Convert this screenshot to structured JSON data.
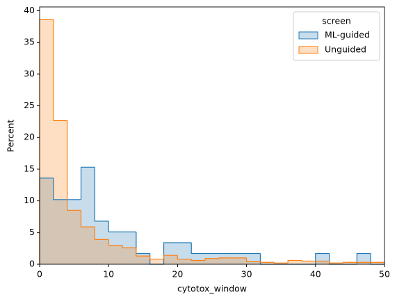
{
  "chart_data": {
    "type": "histogram",
    "xlabel": "cytotox_window",
    "ylabel": "Percent",
    "bins": [
      0,
      2,
      4,
      6,
      8,
      10,
      12,
      14,
      16,
      18,
      20,
      22,
      24,
      26,
      28,
      30,
      32,
      34,
      36,
      38,
      40,
      42,
      44,
      46,
      48,
      50
    ],
    "series": [
      {
        "name": "ML-guided",
        "color": "#1f77b4",
        "values": [
          13.6,
          10.2,
          10.2,
          15.3,
          6.8,
          5.1,
          5.1,
          1.7,
          0,
          3.4,
          3.4,
          1.7,
          1.7,
          1.7,
          1.7,
          1.7,
          0,
          0,
          0,
          0,
          1.7,
          0,
          0,
          1.7,
          0
        ]
      },
      {
        "name": "Unguided",
        "color": "#ff7f0e",
        "values": [
          38.6,
          22.7,
          8.5,
          5.9,
          3.9,
          3.0,
          2.6,
          1.3,
          0.8,
          1.4,
          0.8,
          0.6,
          0.9,
          1.0,
          1.0,
          0.4,
          0.3,
          0.2,
          0.6,
          0.5,
          0.5,
          0.2,
          0.3,
          0.3,
          0.3
        ]
      }
    ],
    "legend_title": "screen",
    "legend": "upper right",
    "xlim": [
      0,
      50
    ],
    "xticks": [
      0,
      10,
      20,
      30,
      40,
      50
    ],
    "ylim": [
      0,
      40.6
    ],
    "yticks": [
      0,
      5,
      10,
      15,
      20,
      25,
      30,
      35,
      40
    ]
  }
}
